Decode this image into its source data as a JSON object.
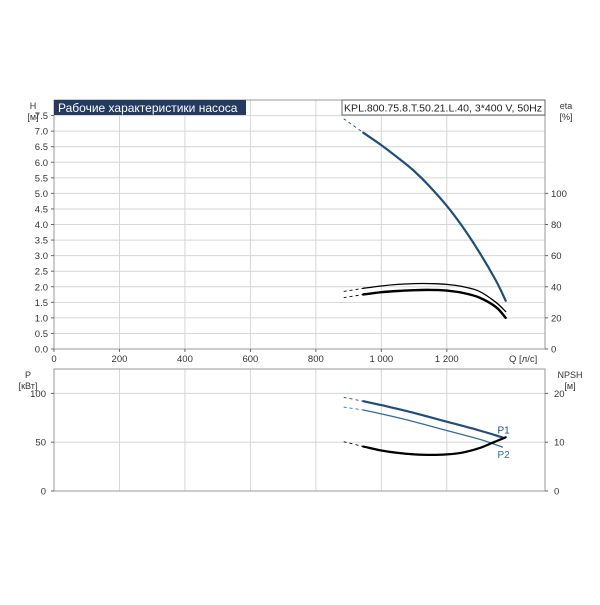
{
  "colors": {
    "blue": "#1f4e79",
    "blue_light": "#2f6da3",
    "black": "#000000",
    "grid": "#d6d6d6",
    "frame": "#9a9a9a",
    "title_bg": "#243a5e"
  },
  "chart_data": [
    {
      "type": "line",
      "title": "Рабочие характеристики насоса",
      "subtitle": "KPL.800.75.8.T.50.21.L.40, 3*400 V, 50Hz",
      "xlabel": "Q [л/с]",
      "ylabel": "H",
      "ylabel_unit": "[м]",
      "ylabel_right": "eta",
      "ylabel_right_unit": "[%]",
      "xlim": [
        0,
        1500
      ],
      "x_ticks": [
        0,
        200,
        400,
        600,
        800,
        1000,
        1200
      ],
      "x_tick_labels": [
        "0",
        "200",
        "400",
        "600",
        "800",
        "1 000",
        "1 200"
      ],
      "ylim": [
        0,
        8
      ],
      "y_ticks": [
        0.0,
        0.5,
        1.0,
        1.5,
        2.0,
        2.5,
        3.0,
        3.5,
        4.0,
        4.5,
        5.0,
        5.5,
        6.0,
        6.5,
        7.0,
        7.5
      ],
      "y_tick_labels": [
        "0.0",
        "0.5",
        "1.0",
        "1.5",
        "2.0",
        "2.5",
        "3.0",
        "3.5",
        "4.0",
        "4.5",
        "5.0",
        "5.5",
        "6.0",
        "6.5",
        "7.0",
        "7.5"
      ],
      "y2lim": [
        0,
        160
      ],
      "y2_ticks": [
        0,
        20,
        40,
        60,
        80,
        100
      ],
      "y2_tick_labels": [
        "0",
        "20",
        "40",
        "60",
        "80",
        "100"
      ],
      "grid": true,
      "series": [
        {
          "axis": "left",
          "color": "#1f4e79",
          "width": 2.2,
          "x": [
            885,
            945,
            1000,
            1050,
            1100,
            1150,
            1200,
            1250,
            1300,
            1350,
            1380
          ],
          "y": [
            7.4,
            6.95,
            6.55,
            6.15,
            5.72,
            5.2,
            4.6,
            3.9,
            3.1,
            2.2,
            1.55
          ],
          "dashed_until": 945
        },
        {
          "axis": "right",
          "color": "#000000",
          "width": 1.3,
          "x": [
            885,
            945,
            1000,
            1050,
            1100,
            1150,
            1200,
            1250,
            1300,
            1350,
            1380
          ],
          "y": [
            37,
            39,
            40.5,
            41.5,
            42,
            42,
            41.5,
            40,
            37,
            30,
            24
          ],
          "dashed_until": 945
        },
        {
          "axis": "right",
          "color": "#000000",
          "width": 2.4,
          "x": [
            885,
            945,
            1000,
            1050,
            1100,
            1150,
            1200,
            1250,
            1300,
            1350,
            1380
          ],
          "y": [
            33,
            35,
            36.5,
            37.3,
            37.8,
            38,
            37.5,
            36,
            33,
            27,
            20
          ],
          "dashed_until": 945
        }
      ]
    },
    {
      "type": "line",
      "ylabel": "P",
      "ylabel_unit": "[кВт]",
      "ylabel_right": "NPSH",
      "ylabel_right_unit": "[м]",
      "xlim": [
        0,
        1500
      ],
      "x_ticks": [
        0,
        200,
        400,
        600,
        800,
        1000,
        1200
      ],
      "ylim": [
        0,
        125
      ],
      "y_ticks": [
        0,
        50,
        100
      ],
      "y_tick_labels": [
        "0",
        "50",
        "100"
      ],
      "y2lim": [
        0,
        25
      ],
      "y2_ticks": [
        0,
        10,
        20
      ],
      "y2_tick_labels": [
        "0",
        "10",
        "20"
      ],
      "grid": true,
      "series": [
        {
          "name": "P1",
          "axis": "left",
          "color": "#1f4e79",
          "width": 2.2,
          "x": [
            885,
            945,
            1000,
            1100,
            1200,
            1300,
            1370
          ],
          "y": [
            96,
            92,
            88,
            80,
            71,
            62,
            55
          ],
          "dashed_until": 945
        },
        {
          "name": "P2",
          "axis": "left",
          "color": "#2f6da3",
          "width": 1.3,
          "x": [
            885,
            945,
            1000,
            1100,
            1200,
            1300,
            1370
          ],
          "y": [
            86,
            83,
            79,
            71,
            62,
            53,
            45
          ],
          "dashed_until": 945
        },
        {
          "axis": "right",
          "color": "#000000",
          "width": 2.2,
          "x": [
            885,
            945,
            1000,
            1050,
            1100,
            1150,
            1200,
            1250,
            1300,
            1340,
            1380
          ],
          "y": [
            10.1,
            9.1,
            8.3,
            7.8,
            7.5,
            7.4,
            7.5,
            7.9,
            8.8,
            9.9,
            11.0
          ],
          "dashed_until": 945
        }
      ]
    }
  ]
}
